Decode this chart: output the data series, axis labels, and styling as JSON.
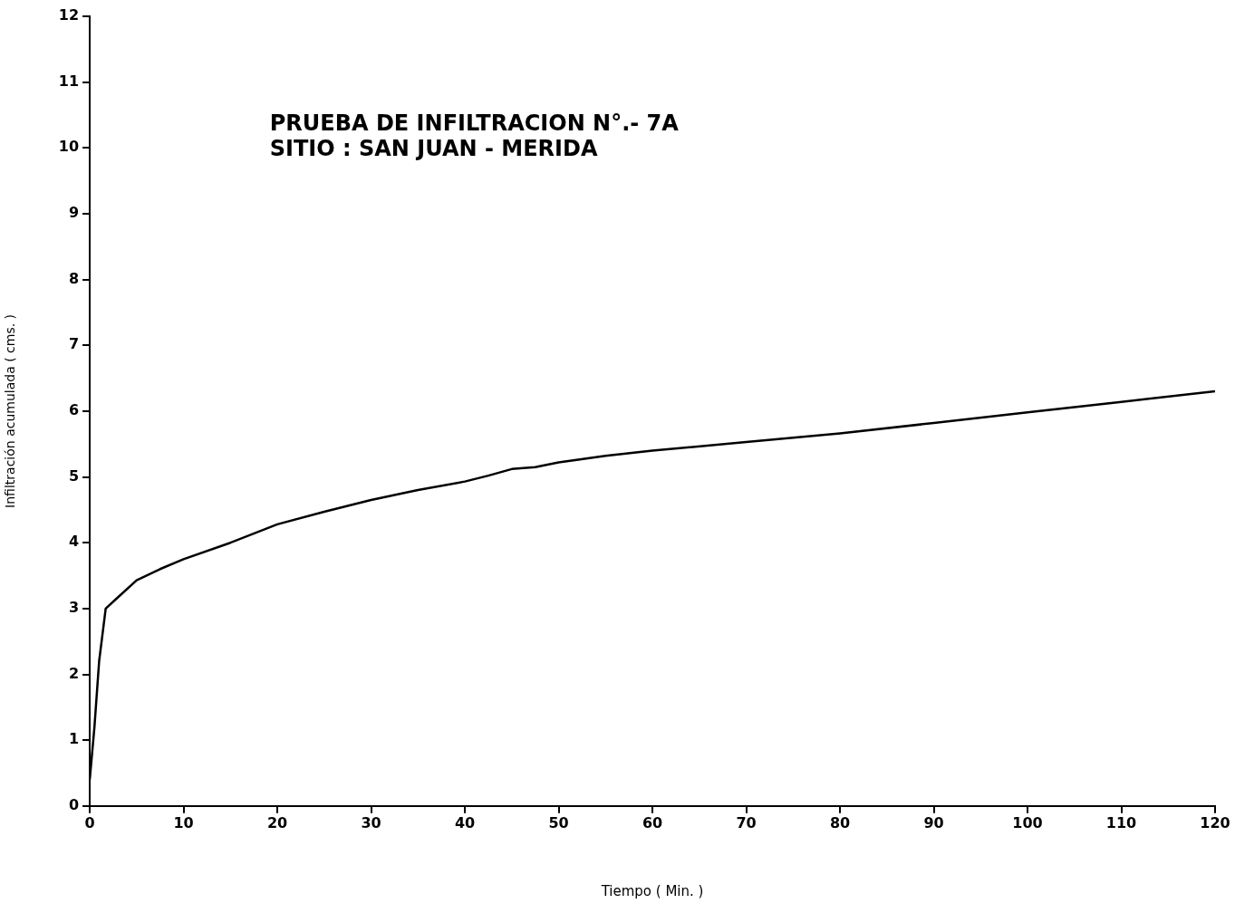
{
  "chart_data": {
    "type": "line",
    "title": "PRUEBA DE INFILTRACION N°.- 7A",
    "subtitle": "SITIO : SAN JUAN - MERIDA",
    "xlabel": "Tiempo ( Min. )",
    "ylabel": "Infiltración acumulada ( cms. )",
    "x": [
      0,
      0.5,
      1,
      1.7,
      3,
      5,
      7.5,
      10,
      15,
      20,
      25,
      30,
      35,
      40,
      42.5,
      45,
      47.5,
      50,
      55,
      60,
      70,
      80,
      90,
      100,
      110,
      120
    ],
    "series": [
      {
        "color": "#000000",
        "values": [
          0.4,
          1.2,
          2.2,
          3.0,
          3.17,
          3.43,
          3.6,
          3.75,
          4.0,
          4.28,
          4.47,
          4.65,
          4.8,
          4.93,
          5.02,
          5.12,
          5.15,
          5.22,
          5.32,
          5.4,
          5.53,
          5.66,
          5.82,
          5.98,
          6.14,
          6.3
        ]
      }
    ],
    "xlim": [
      0,
      120
    ],
    "xticks": [
      0,
      10,
      20,
      30,
      40,
      50,
      60,
      70,
      80,
      90,
      100,
      110,
      120
    ],
    "ylim": [
      0,
      12
    ],
    "yticks": [
      0,
      1,
      2,
      3,
      4,
      5,
      6,
      7,
      8,
      9,
      10,
      11,
      12
    ],
    "grid": false,
    "legend": false,
    "marker": "none",
    "line_style": "solid"
  }
}
